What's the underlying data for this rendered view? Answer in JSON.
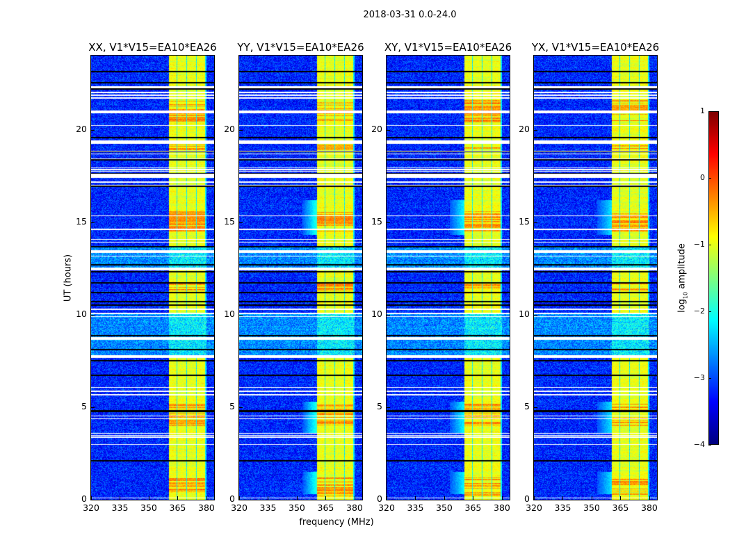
{
  "chart_data": {
    "type": "heatmap",
    "title": "2018-03-31 0.0-24.0",
    "panels": [
      {
        "title": "XX, V1*V15=EA10*EA26",
        "seed": 11,
        "glow": 0.0
      },
      {
        "title": "YY, V1*V15=EA10*EA26",
        "seed": 23,
        "glow": 1.0
      },
      {
        "title": "XY, V1*V15=EA10*EA26",
        "seed": 37,
        "glow": 0.8
      },
      {
        "title": "YX, V1*V15=EA10*EA26",
        "seed": 51,
        "glow": 0.7
      }
    ],
    "xlabel": "frequency (MHz)",
    "ylabel": "UT (hours)",
    "xlim": [
      320,
      384
    ],
    "ylim": [
      0,
      24
    ],
    "xticks": [
      "320",
      "335",
      "350",
      "365",
      "380"
    ],
    "yticks": [
      "0",
      "5",
      "10",
      "15",
      "20"
    ],
    "colorbar": {
      "label_main": "log",
      "label_sub": "10",
      "label_rest": " amplitude",
      "range": [
        -4,
        1
      ],
      "ticks": [
        "1",
        "0",
        "−1",
        "−2",
        "−3",
        "−4"
      ],
      "colormap": "jet"
    },
    "background_level": -3.2,
    "signal_level": -1.0,
    "signal_subbands_mhz": [
      [
        360.5,
        365
      ],
      [
        365,
        370
      ],
      [
        370,
        375
      ],
      [
        375,
        380
      ]
    ],
    "hot_hours": [
      [
        0.2,
        1.2
      ],
      [
        4.0,
        5.2
      ],
      [
        11.3,
        11.7
      ],
      [
        14.5,
        15.6
      ],
      [
        18.9,
        19.2
      ],
      [
        20.4,
        21.6
      ],
      [
        21.2,
        21.5
      ]
    ],
    "inactive_hours": [
      [
        12.4,
        13.7
      ],
      [
        7.7,
        10.05
      ]
    ],
    "flagged_white_hours": [
      [
        22.25,
        22.35
      ],
      [
        21.97,
        22.05
      ],
      [
        21.84,
        21.88
      ],
      [
        21.69,
        21.73
      ],
      [
        20.88,
        21.04
      ],
      [
        20.19,
        20.23
      ],
      [
        19.22,
        19.4
      ],
      [
        18.8,
        18.84
      ],
      [
        18.65,
        18.69
      ],
      [
        18.42,
        18.46
      ],
      [
        17.93,
        17.97
      ],
      [
        17.82,
        17.86
      ],
      [
        17.71,
        17.75
      ],
      [
        17.4,
        17.6
      ],
      [
        17.18,
        17.22
      ],
      [
        17.11,
        17.15
      ],
      [
        16.99,
        17.03
      ],
      [
        15.34,
        15.38
      ],
      [
        14.59,
        14.63
      ],
      [
        14.03,
        14.07
      ],
      [
        13.91,
        13.95
      ],
      [
        13.33,
        13.49
      ],
      [
        13.16,
        13.2
      ],
      [
        12.4,
        12.55
      ],
      [
        10.27,
        10.31
      ],
      [
        10.08,
        10.12
      ],
      [
        10.01,
        10.05
      ],
      [
        9.86,
        9.9
      ],
      [
        8.63,
        8.79
      ],
      [
        7.66,
        7.82
      ],
      [
        6.06,
        6.1
      ],
      [
        5.84,
        5.88
      ],
      [
        5.62,
        5.72
      ],
      [
        4.52,
        4.56
      ],
      [
        4.34,
        4.38
      ],
      [
        3.55,
        3.59
      ],
      [
        3.44,
        3.48
      ],
      [
        3.36,
        3.4
      ],
      [
        2.98,
        3.02
      ],
      [
        0.09,
        0.13
      ]
    ],
    "flagged_black_hours": [
      23.14,
      22.54,
      22.2,
      19.57,
      18.82,
      18.37,
      17.62,
      16.94,
      13.67,
      12.69,
      12.32,
      11.72,
      11.19,
      10.7,
      10.52,
      8.86,
      8.11,
      7.51,
      6.72,
      4.81,
      4.77,
      2.1
    ]
  }
}
